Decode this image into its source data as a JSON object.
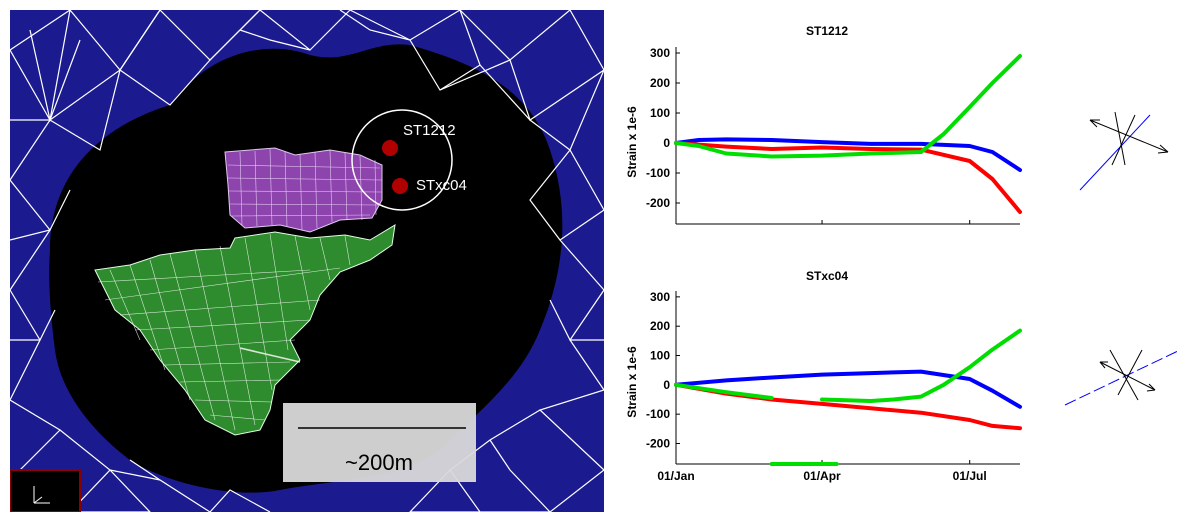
{
  "map": {
    "stations": [
      {
        "name": "ST1212"
      },
      {
        "name": "STxc04"
      }
    ],
    "scale_bar_label": "~200m",
    "colors": {
      "background": "#000000",
      "mesh_fill": "#1a1a8c",
      "mesh_lines": "#ffffff",
      "upper_region": "#8e44ad",
      "lower_region": "#2e8b2e",
      "station_marker": "#b00000"
    }
  },
  "chart_data": [
    {
      "type": "line",
      "title": "ST1212",
      "ylabel": "Strain x 1e-6",
      "xlabel": "",
      "ylim": [
        -270,
        320
      ],
      "yticks": [
        300,
        200,
        100,
        0,
        -100,
        -200
      ],
      "xlim": [
        "01/Jan",
        "01/Aug"
      ],
      "xticks": [
        "01/Jan",
        "01/Apr",
        "01/Jul"
      ],
      "xtick_labels": [],
      "series": [
        {
          "color": "#0000ff",
          "x": [
            "01/Jan",
            "15/Jan",
            "01/Feb",
            "01/Mar",
            "01/Apr",
            "01/May",
            "01/Jun",
            "01/Jul",
            "15/Jul",
            "01/Aug"
          ],
          "y": [
            0,
            10,
            12,
            10,
            3,
            -3,
            -3,
            -10,
            -30,
            -90
          ]
        },
        {
          "color": "#ff0000",
          "x": [
            "01/Jan",
            "01/Feb",
            "01/Mar",
            "01/Apr",
            "01/May",
            "01/Jun",
            "01/Jul",
            "15/Jul",
            "01/Aug"
          ],
          "y": [
            0,
            -12,
            -20,
            -15,
            -20,
            -22,
            -60,
            -120,
            -230
          ]
        },
        {
          "color": "#00dd00",
          "x": [
            "01/Jan",
            "15/Jan",
            "01/Feb",
            "01/Mar",
            "01/Apr",
            "01/May",
            "01/Jun",
            "15/Jun",
            "01/Jul",
            "15/Jul",
            "01/Aug"
          ],
          "y": [
            0,
            -10,
            -35,
            -45,
            -42,
            -35,
            -30,
            30,
            120,
            200,
            290
          ]
        }
      ]
    },
    {
      "type": "line",
      "title": "STxc04",
      "ylabel": "Strain x 1e-6",
      "xlabel": "",
      "ylim": [
        -270,
        320
      ],
      "yticks": [
        300,
        200,
        100,
        0,
        -100,
        -200
      ],
      "xlim": [
        "01/Jan",
        "01/Aug"
      ],
      "xticks": [
        "01/Jan",
        "01/Apr",
        "01/Jul"
      ],
      "xtick_labels": [
        "01/Jan",
        "01/Apr",
        "01/Jul"
      ],
      "series": [
        {
          "color": "#0000ff",
          "x": [
            "01/Jan",
            "01/Feb",
            "01/Mar",
            "01/Apr",
            "01/May",
            "01/Jun",
            "01/Jul",
            "15/Jul",
            "01/Aug"
          ],
          "y": [
            0,
            15,
            25,
            35,
            40,
            45,
            20,
            -20,
            -75
          ]
        },
        {
          "color": "#ff0000",
          "x": [
            "01/Jan",
            "01/Feb",
            "01/Mar",
            "01/Apr",
            "01/May",
            "01/Jun",
            "01/Jul",
            "15/Jul",
            "01/Aug"
          ],
          "y": [
            0,
            -30,
            -50,
            -65,
            -80,
            -95,
            -120,
            -140,
            -148
          ]
        },
        {
          "color": "#00dd00",
          "x": [
            "01/Jan",
            "01/Feb",
            "01/Mar"
          ],
          "y": [
            0,
            -25,
            -45
          ]
        },
        {
          "color": "#00dd00",
          "x": [
            "01/Apr",
            "01/May",
            "15/May",
            "01/Jun",
            "15/Jun",
            "01/Jul",
            "15/Jul",
            "01/Aug"
          ],
          "y": [
            -50,
            -55,
            -50,
            -40,
            0,
            60,
            120,
            185
          ]
        },
        {
          "color": "#00dd00",
          "x": [
            "01/Mar",
            "10/Apr"
          ],
          "y": [
            -270,
            -270
          ]
        }
      ]
    }
  ],
  "strain_glyphs": [
    {
      "station": "ST1212",
      "line_color": "#0000ff"
    },
    {
      "station": "STxc04",
      "line_color": "#0000ff"
    }
  ]
}
